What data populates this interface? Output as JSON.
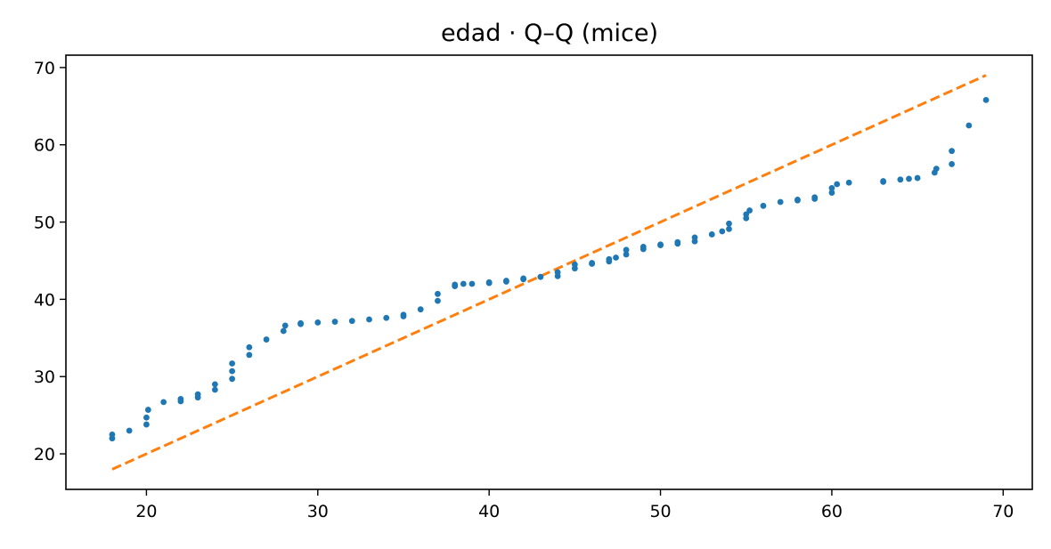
{
  "chart_data": {
    "type": "scatter",
    "title": "edad · Q–Q (mice)",
    "xlabel": "",
    "ylabel": "",
    "xlim": [
      15.3,
      71.7
    ],
    "ylim": [
      15.4,
      71.6
    ],
    "x_ticks": [
      20,
      30,
      40,
      50,
      60,
      70
    ],
    "y_ticks": [
      20,
      30,
      40,
      50,
      60,
      70
    ],
    "grid": false,
    "legend": "none",
    "colors": {
      "points": "#1f77b4",
      "reference_line": "#ff7f0e"
    },
    "reference_line": {
      "x": [
        18,
        69
      ],
      "y": [
        18,
        69
      ],
      "style": "dashed"
    },
    "series": [
      {
        "points": [
          [
            18,
            22.0
          ],
          [
            18,
            22.5
          ],
          [
            19,
            23.0
          ],
          [
            20,
            23.8
          ],
          [
            20,
            24.7
          ],
          [
            20.1,
            25.7
          ],
          [
            21,
            26.7
          ],
          [
            22,
            26.8
          ],
          [
            22,
            27.1
          ],
          [
            23,
            27.3
          ],
          [
            23,
            27.7
          ],
          [
            24,
            28.3
          ],
          [
            24,
            29.0
          ],
          [
            25,
            29.7
          ],
          [
            25,
            30.7
          ],
          [
            25,
            31.7
          ],
          [
            26,
            32.8
          ],
          [
            26,
            33.8
          ],
          [
            27,
            34.8
          ],
          [
            28,
            35.9
          ],
          [
            28.1,
            36.6
          ],
          [
            29,
            36.8
          ],
          [
            29,
            36.9
          ],
          [
            30,
            37.0
          ],
          [
            31,
            37.1
          ],
          [
            32,
            37.2
          ],
          [
            33,
            37.4
          ],
          [
            34,
            37.6
          ],
          [
            35,
            37.8
          ],
          [
            35,
            38.0
          ],
          [
            36,
            38.7
          ],
          [
            37,
            39.8
          ],
          [
            37,
            40.7
          ],
          [
            38,
            41.7
          ],
          [
            38,
            41.9
          ],
          [
            38.5,
            42.0
          ],
          [
            39,
            42.0
          ],
          [
            40,
            42.1
          ],
          [
            40,
            42.2
          ],
          [
            41,
            42.3
          ],
          [
            41,
            42.4
          ],
          [
            42,
            42.6
          ],
          [
            42,
            42.7
          ],
          [
            43,
            42.9
          ],
          [
            44,
            43.0
          ],
          [
            44,
            43.5
          ],
          [
            45,
            44.0
          ],
          [
            45,
            44.5
          ],
          [
            46,
            44.6
          ],
          [
            46,
            44.7
          ],
          [
            47,
            44.9
          ],
          [
            47,
            45.2
          ],
          [
            47.4,
            45.4
          ],
          [
            48,
            45.8
          ],
          [
            48,
            46.4
          ],
          [
            49,
            46.5
          ],
          [
            49,
            46.8
          ],
          [
            50,
            47.0
          ],
          [
            50,
            47.1
          ],
          [
            51,
            47.2
          ],
          [
            51,
            47.4
          ],
          [
            52,
            47.5
          ],
          [
            52,
            48.0
          ],
          [
            53,
            48.4
          ],
          [
            53.6,
            48.8
          ],
          [
            54,
            49.1
          ],
          [
            54,
            49.8
          ],
          [
            55,
            50.5
          ],
          [
            55,
            51.0
          ],
          [
            55.2,
            51.5
          ],
          [
            56,
            52.1
          ],
          [
            57,
            52.6
          ],
          [
            58,
            52.8
          ],
          [
            58,
            52.9
          ],
          [
            59,
            53.0
          ],
          [
            59,
            53.2
          ],
          [
            60,
            53.8
          ],
          [
            60,
            54.4
          ],
          [
            60.3,
            54.9
          ],
          [
            61,
            55.1
          ],
          [
            63,
            55.2
          ],
          [
            63,
            55.3
          ],
          [
            64,
            55.5
          ],
          [
            64.5,
            55.6
          ],
          [
            65,
            55.7
          ],
          [
            66,
            56.4
          ],
          [
            66.1,
            56.9
          ],
          [
            67,
            57.5
          ],
          [
            67,
            59.2
          ],
          [
            68,
            62.5
          ],
          [
            69,
            65.8
          ]
        ]
      }
    ]
  }
}
